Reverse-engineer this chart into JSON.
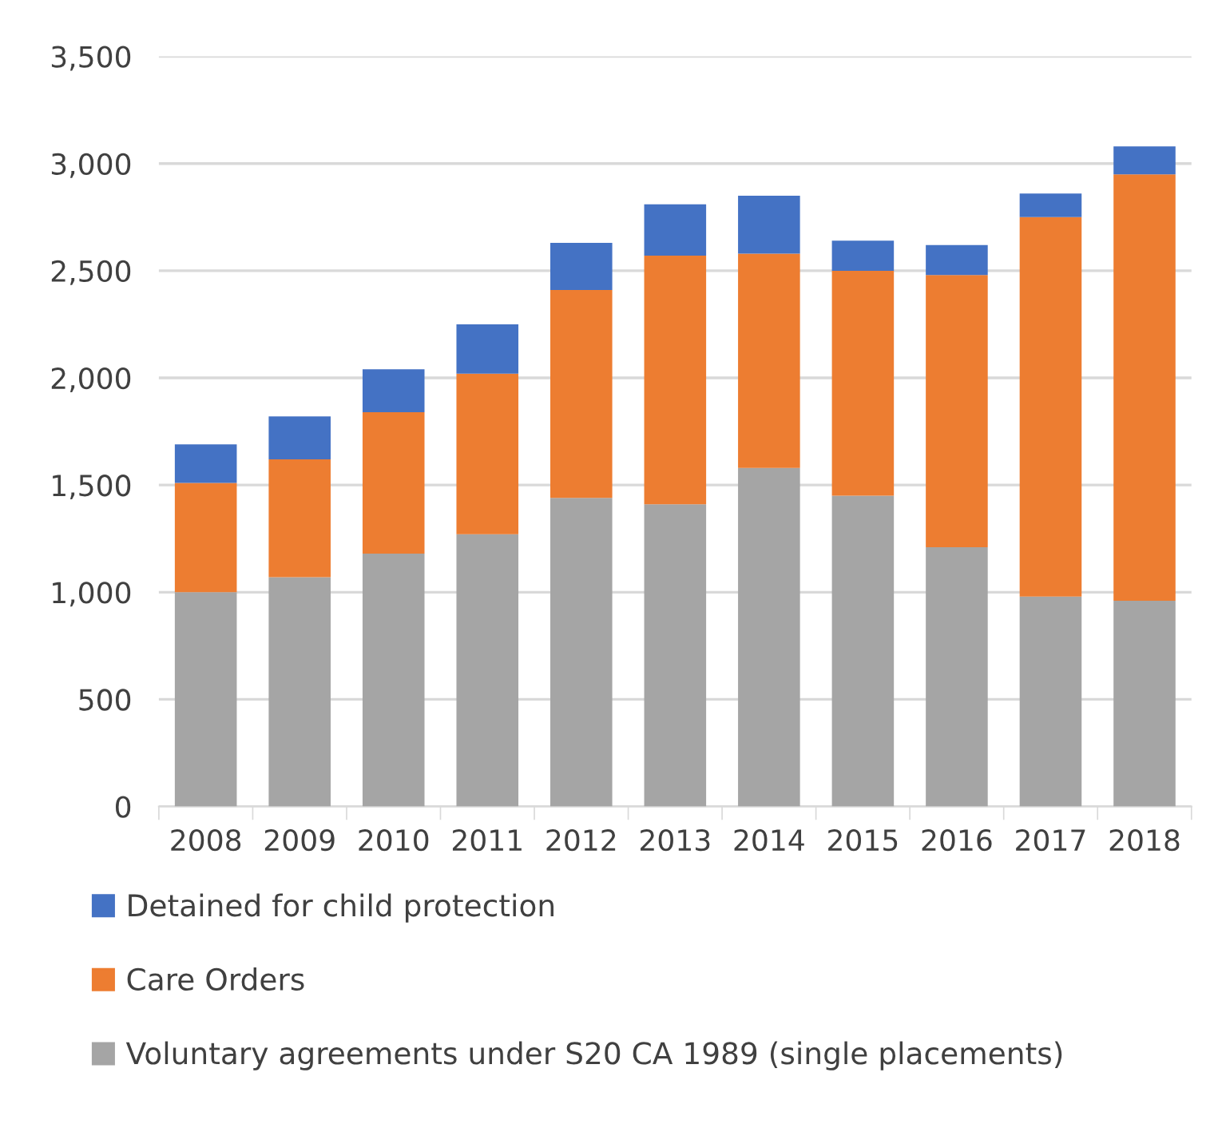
{
  "chart_data": {
    "type": "bar",
    "stacked": true,
    "categories": [
      "2008",
      "2009",
      "2010",
      "2011",
      "2012",
      "2013",
      "2014",
      "2015",
      "2016",
      "2017",
      "2018"
    ],
    "series": [
      {
        "name": "Voluntary agreements under S20 CA 1989 (single placements)",
        "color": "#a5a5a5",
        "values": [
          1000,
          1070,
          1180,
          1270,
          1440,
          1410,
          1580,
          1450,
          1210,
          980,
          960
        ]
      },
      {
        "name": "Care Orders",
        "color": "#ed7d31",
        "values": [
          510,
          550,
          660,
          750,
          970,
          1160,
          1000,
          1050,
          1270,
          1770,
          1990
        ]
      },
      {
        "name": "Detained for child protection",
        "color": "#4472c4",
        "values": [
          180,
          200,
          200,
          230,
          220,
          240,
          270,
          140,
          140,
          110,
          130
        ]
      }
    ],
    "ylim": [
      0,
      3500
    ],
    "yticks": [
      {
        "value": 0,
        "label": "0"
      },
      {
        "value": 500,
        "label": "500"
      },
      {
        "value": 1000,
        "label": "1,000"
      },
      {
        "value": 1500,
        "label": "1,500"
      },
      {
        "value": 2000,
        "label": "2,000"
      },
      {
        "value": 2500,
        "label": "2,500"
      },
      {
        "value": 3000,
        "label": "3,000"
      },
      {
        "value": 3500,
        "label": "3,500"
      }
    ],
    "grid": "y",
    "legend": "bottom"
  }
}
